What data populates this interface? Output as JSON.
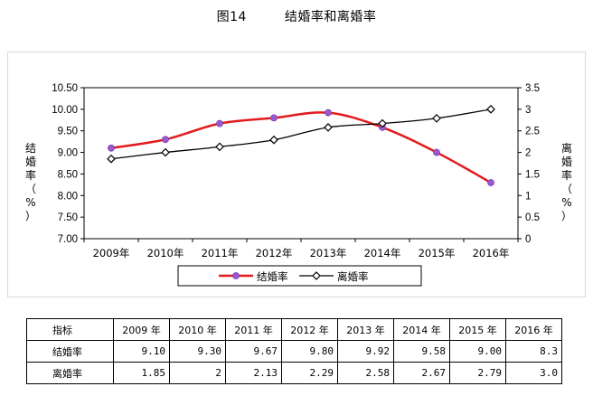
{
  "figure": {
    "number": "图14",
    "title": "结婚率和离婚率"
  },
  "chart_data": {
    "type": "line",
    "categories": [
      "2009年",
      "2010年",
      "2011年",
      "2012年",
      "2013年",
      "2014年",
      "2015年",
      "2016年"
    ],
    "series": [
      {
        "name": "结婚率",
        "axis": "left",
        "color": "#e31a1c",
        "marker_color": "#9b59d0",
        "values": [
          9.1,
          9.3,
          9.67,
          9.8,
          9.92,
          9.58,
          9.0,
          8.3
        ]
      },
      {
        "name": "离婚率",
        "axis": "right",
        "color": "#000000",
        "marker_color": "#ffffff",
        "values": [
          1.85,
          2.0,
          2.13,
          2.29,
          2.58,
          2.67,
          2.79,
          3.0
        ]
      }
    ],
    "y_left": {
      "label": [
        "结",
        "婚",
        "率",
        "（",
        "%",
        "）"
      ],
      "range": [
        7.0,
        10.5
      ],
      "ticks": [
        "7.00",
        "7.50",
        "8.00",
        "8.50",
        "9.00",
        "9.50",
        "10.00",
        "10.50"
      ]
    },
    "y_right": {
      "label": [
        "离",
        "婚",
        "率",
        "（",
        "%",
        "）"
      ],
      "range": [
        0,
        3.5
      ],
      "ticks": [
        "0",
        "0.5",
        "1",
        "1.5",
        "2",
        "2.5",
        "3",
        "3.5"
      ]
    },
    "grid": false,
    "legend": "bottom"
  },
  "table": {
    "header": "指标",
    "years": [
      "2009 年",
      "2010 年",
      "2011 年",
      "2012 年",
      "2013 年",
      "2014 年",
      "2015 年",
      "2016 年"
    ],
    "rows": [
      {
        "label": "结婚率",
        "values": [
          "9.10",
          "9.30",
          "9.67",
          "9.80",
          "9.92",
          "9.58",
          "9.00",
          "8.3"
        ]
      },
      {
        "label": "离婚率",
        "values": [
          "1.85",
          "2",
          "2.13",
          "2.29",
          "2.58",
          "2.67",
          "2.79",
          "3.0"
        ]
      }
    ]
  }
}
